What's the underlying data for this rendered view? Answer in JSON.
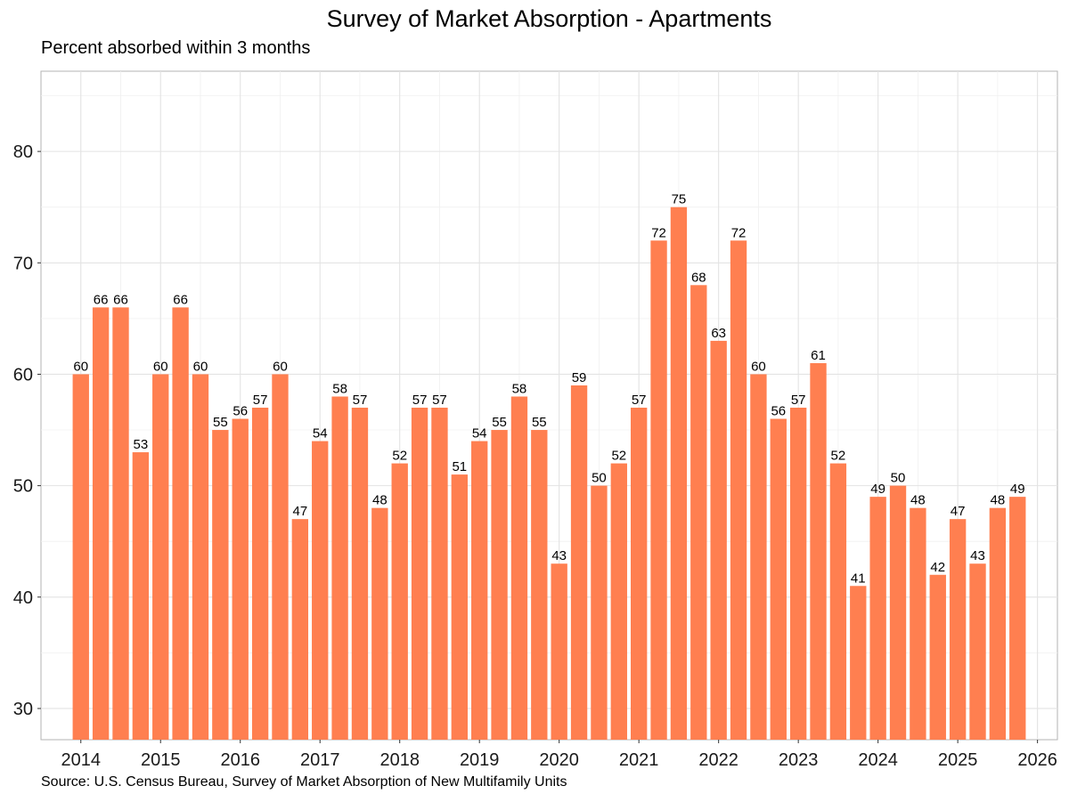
{
  "chart_data": {
    "type": "bar",
    "title": "Survey of Market Absorption - Apartments",
    "subtitle": "Percent absorbed within 3 months",
    "caption": "Source: U.S. Census Bureau, Survey of Market Absorption of New Multifamily Units",
    "xlabel": "",
    "ylabel": "",
    "ylim": [
      27.2,
      87.2
    ],
    "y_ticks": [
      30,
      40,
      50,
      60,
      70,
      80
    ],
    "xlim": [
      2013.5,
      2026.25
    ],
    "x_ticks": [
      2014,
      2015,
      2016,
      2017,
      2018,
      2019,
      2020,
      2021,
      2022,
      2023,
      2024,
      2025,
      2026
    ],
    "grid": true,
    "bar_color": "#FF7F50",
    "series": [
      {
        "x": [
          2014.0,
          2014.25,
          2014.5,
          2014.75,
          2015.0,
          2015.25,
          2015.5,
          2015.75,
          2016.0,
          2016.25,
          2016.5,
          2016.75,
          2017.0,
          2017.25,
          2017.5,
          2017.75,
          2018.0,
          2018.25,
          2018.5,
          2018.75,
          2019.0,
          2019.25,
          2019.5,
          2019.75,
          2020.0,
          2020.25,
          2020.5,
          2020.75,
          2021.0,
          2021.25,
          2021.5,
          2021.75,
          2022.0,
          2022.25,
          2022.5,
          2022.75,
          2023.0,
          2023.25,
          2023.5,
          2023.75,
          2024.0,
          2024.25,
          2024.5,
          2024.75,
          2025.0,
          2025.25,
          2025.5,
          2025.75
        ],
        "values": [
          60,
          66,
          66,
          53,
          60,
          66,
          60,
          55,
          56,
          57,
          60,
          47,
          54,
          58,
          57,
          48,
          52,
          57,
          57,
          51,
          54,
          55,
          58,
          55,
          43,
          59,
          50,
          52,
          57,
          72,
          75,
          68,
          63,
          72,
          60,
          56,
          57,
          61,
          52,
          41,
          49,
          50,
          48,
          42,
          47,
          43,
          48,
          49
        ]
      }
    ]
  }
}
